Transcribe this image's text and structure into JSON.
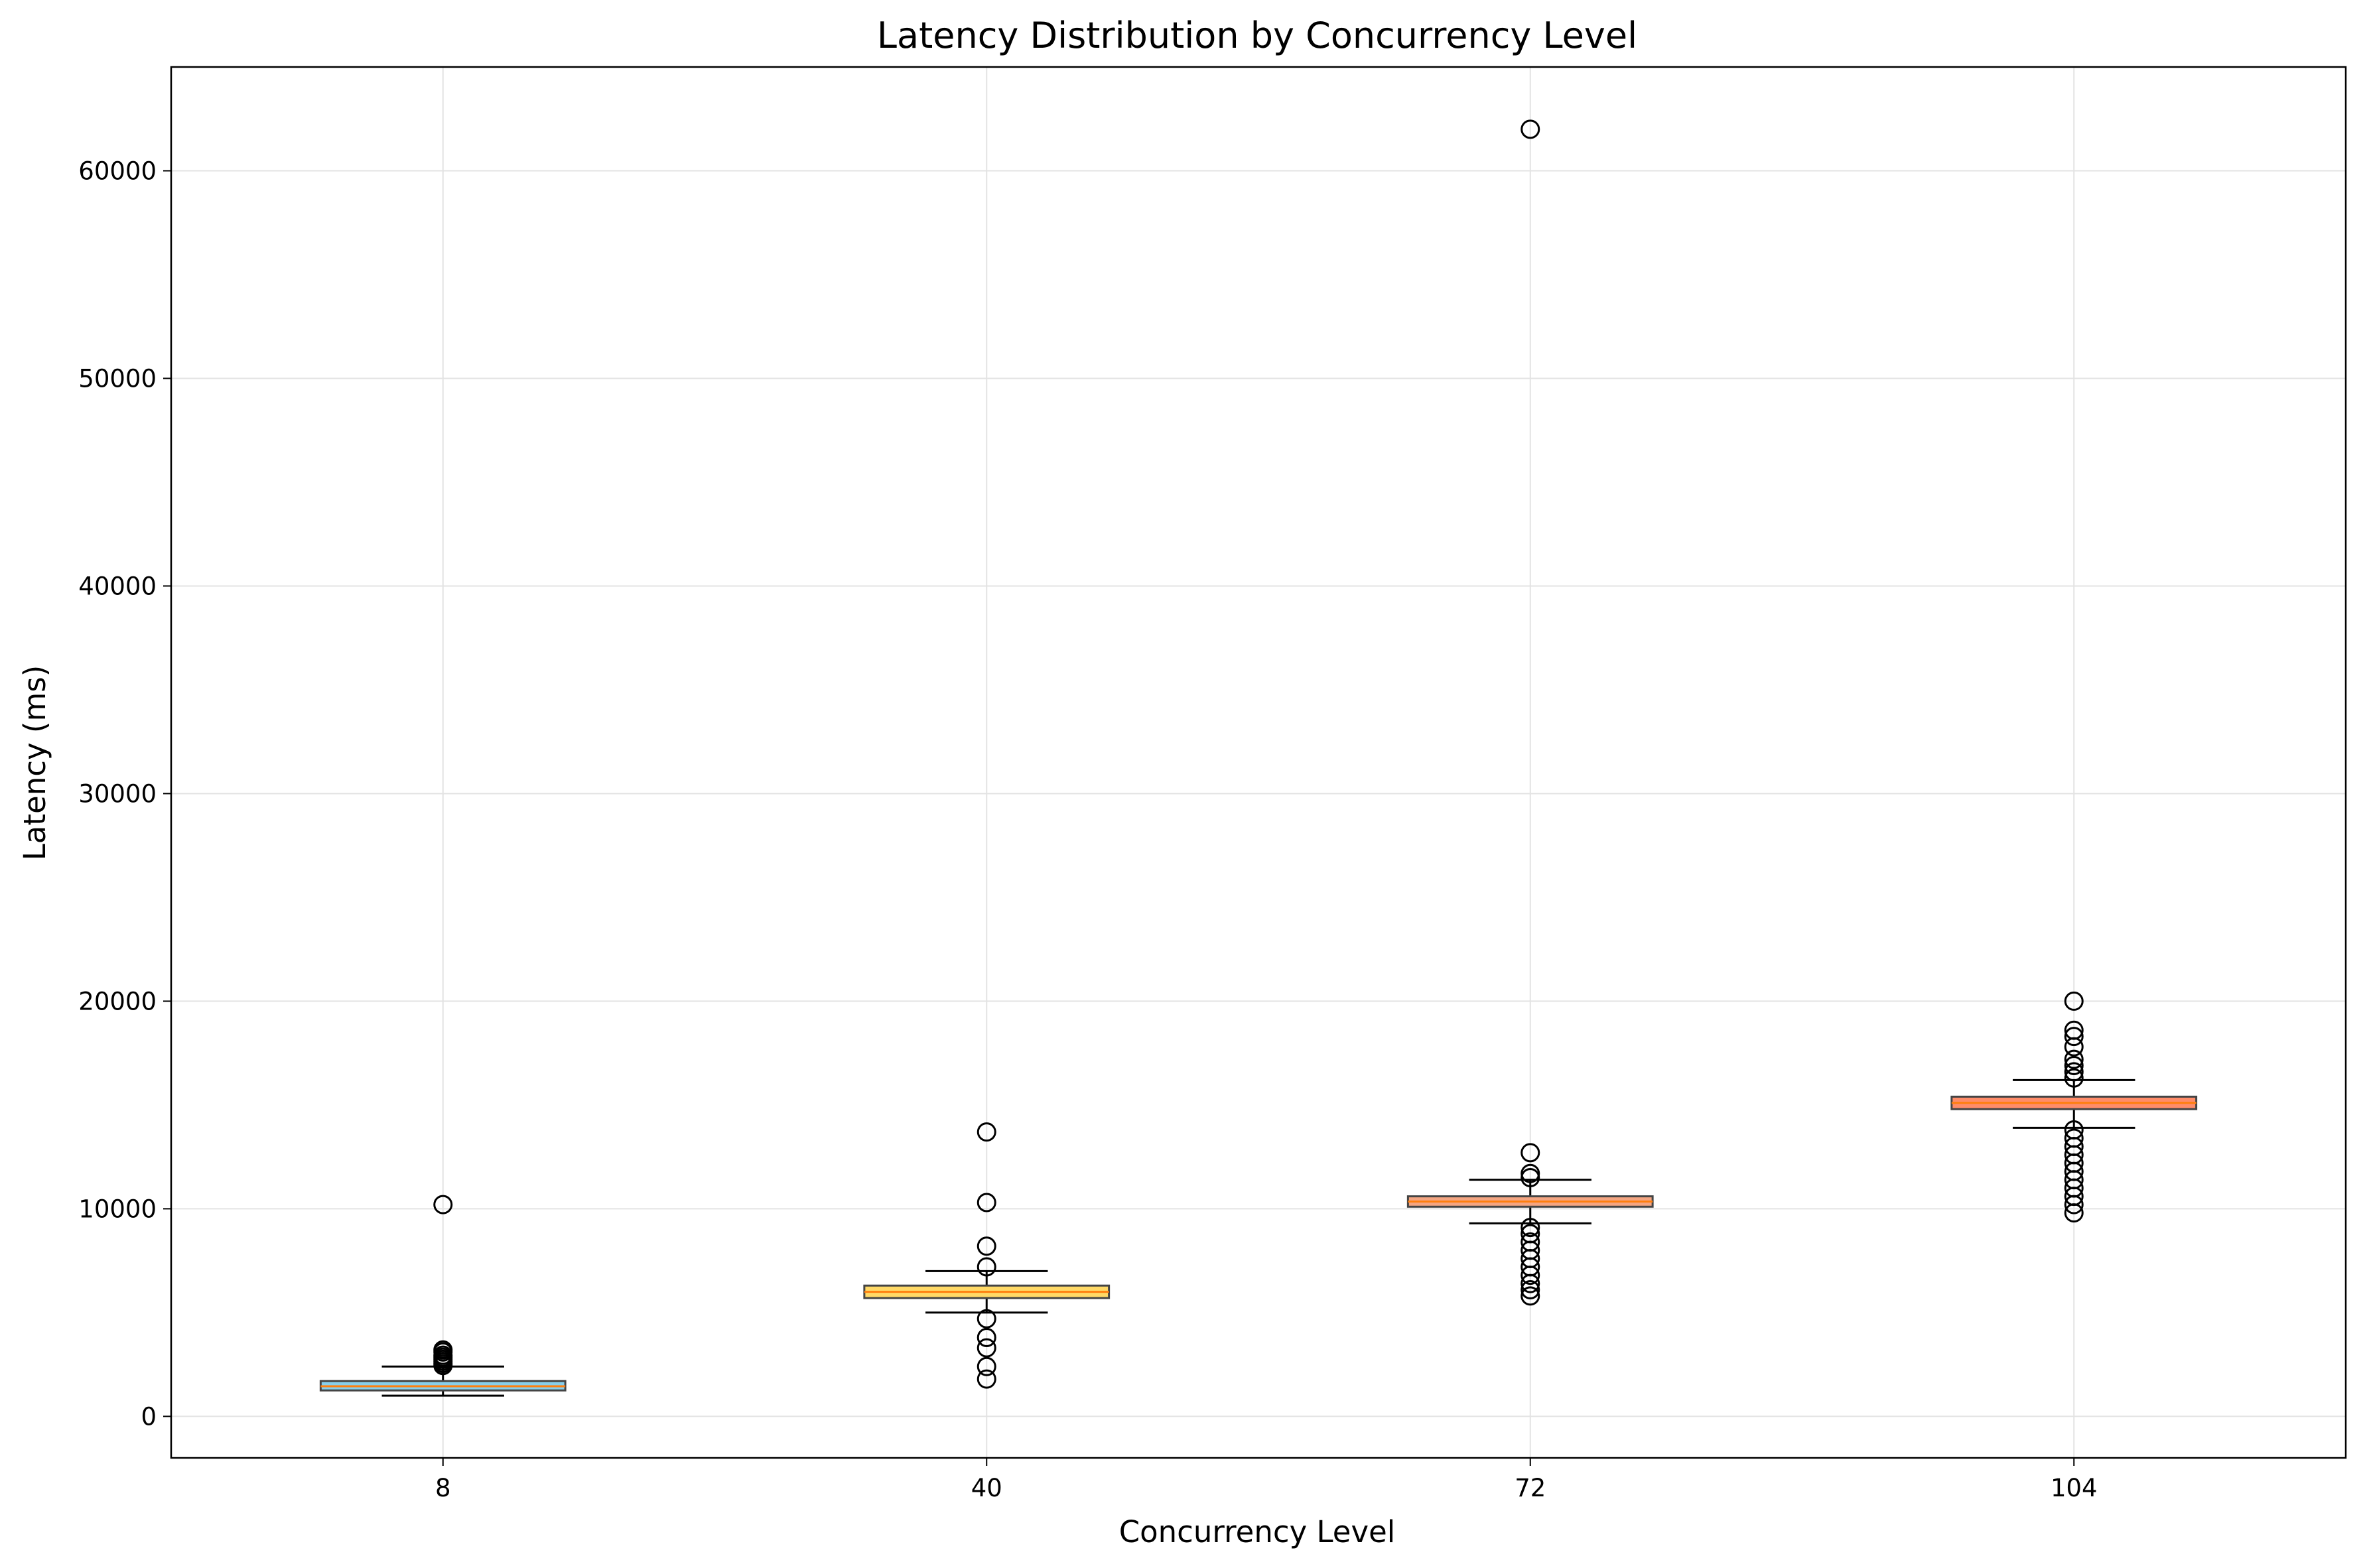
{
  "chart_data": {
    "type": "boxplot",
    "title": "Latency Distribution by Concurrency Level",
    "xlabel": "Concurrency Level",
    "ylabel": "Latency (ms)",
    "ylim": [
      -2000,
      65000
    ],
    "yticks": [
      0,
      10000,
      20000,
      30000,
      40000,
      50000,
      60000
    ],
    "grid": true,
    "categories": [
      "8",
      "40",
      "72",
      "104"
    ],
    "boxes": [
      {
        "category": "8",
        "whisker_low": 1000,
        "q1": 1250,
        "median": 1450,
        "q3": 1700,
        "whisker_high": 2400,
        "color": "#87ceeb",
        "outliers": [
          2450,
          2550,
          2650,
          2750,
          2850,
          2950,
          3100,
          3200,
          10200
        ]
      },
      {
        "category": "40",
        "whisker_low": 5000,
        "q1": 5700,
        "median": 6000,
        "q3": 6300,
        "whisker_high": 7000,
        "color": "#ffd966",
        "outliers": [
          1800,
          2400,
          3300,
          3800,
          4700,
          7200,
          8200,
          10300,
          13700
        ]
      },
      {
        "category": "72",
        "whisker_low": 9300,
        "q1": 10100,
        "median": 10350,
        "q3": 10600,
        "whisker_high": 11400,
        "color": "#f4a582",
        "outliers": [
          5800,
          6100,
          6400,
          6800,
          7200,
          7600,
          8000,
          8400,
          8800,
          9100,
          11500,
          11700,
          12700,
          62000
        ]
      },
      {
        "category": "104",
        "whisker_low": 13900,
        "q1": 14800,
        "median": 15100,
        "q3": 15400,
        "whisker_high": 16200,
        "color": "#ff8c69",
        "outliers": [
          9800,
          10200,
          10600,
          11000,
          11400,
          11800,
          12200,
          12600,
          13000,
          13400,
          13800,
          16300,
          16600,
          16900,
          17200,
          17800,
          18300,
          18600,
          20000
        ]
      }
    ]
  }
}
